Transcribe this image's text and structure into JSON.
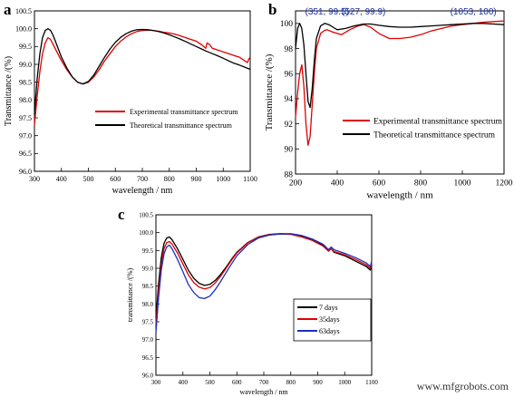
{
  "chart_data": [
    {
      "panel": "a",
      "type": "line",
      "xlabel": "wavelength / nm",
      "ylabel": "Transmittance /(%)",
      "xlim": [
        300,
        1100
      ],
      "ylim": [
        96.0,
        100.5
      ],
      "xticks": [
        "300",
        "400",
        "500",
        "600",
        "700",
        "800",
        "900",
        "1000",
        "1100"
      ],
      "yticks": [
        "96.0",
        "96.5",
        "97.0",
        "97.5",
        "98.0",
        "98.5",
        "99.0",
        "99.5",
        "100.0",
        "100.5"
      ],
      "legend_position": "center-right",
      "series": [
        {
          "name": "Experimental transmittance spectrum",
          "color": "#e00000",
          "x": [
            300,
            310,
            320,
            330,
            340,
            350,
            360,
            370,
            380,
            400,
            420,
            440,
            460,
            480,
            500,
            520,
            540,
            560,
            580,
            600,
            620,
            640,
            660,
            680,
            700,
            720,
            740,
            760,
            780,
            800,
            820,
            840,
            860,
            880,
            900,
            920,
            935,
            940,
            950,
            960,
            980,
            1000,
            1020,
            1040,
            1060,
            1080,
            1090,
            1095,
            1100
          ],
          "y": [
            97.3,
            98.1,
            98.8,
            99.3,
            99.6,
            99.75,
            99.7,
            99.55,
            99.4,
            99.1,
            98.85,
            98.65,
            98.5,
            98.45,
            98.5,
            98.65,
            98.85,
            99.1,
            99.3,
            99.5,
            99.65,
            99.77,
            99.86,
            99.92,
            99.95,
            99.96,
            99.95,
            99.93,
            99.9,
            99.88,
            99.85,
            99.8,
            99.75,
            99.7,
            99.65,
            99.55,
            99.45,
            99.6,
            99.55,
            99.45,
            99.4,
            99.35,
            99.3,
            99.25,
            99.2,
            99.1,
            99.05,
            99.15,
            99.2
          ]
        },
        {
          "name": "Theoretical transmittance spectrum",
          "color": "#000000",
          "x": [
            300,
            310,
            320,
            330,
            340,
            350,
            360,
            370,
            380,
            400,
            420,
            440,
            460,
            480,
            500,
            520,
            540,
            560,
            580,
            600,
            620,
            640,
            660,
            680,
            700,
            720,
            740,
            760,
            780,
            800,
            820,
            840,
            860,
            880,
            900,
            920,
            940,
            960,
            980,
            1000,
            1020,
            1040,
            1060,
            1080,
            1100
          ],
          "y": [
            97.6,
            98.6,
            99.3,
            99.75,
            99.95,
            100.0,
            99.95,
            99.8,
            99.6,
            99.2,
            98.9,
            98.65,
            98.5,
            98.45,
            98.52,
            98.7,
            98.95,
            99.2,
            99.43,
            99.62,
            99.76,
            99.86,
            99.93,
            99.97,
            99.98,
            99.97,
            99.95,
            99.92,
            99.88,
            99.83,
            99.77,
            99.71,
            99.64,
            99.57,
            99.5,
            99.43,
            99.36,
            99.3,
            99.24,
            99.17,
            99.1,
            99.03,
            98.98,
            98.92,
            98.86
          ]
        }
      ]
    },
    {
      "panel": "b",
      "type": "line",
      "xlabel": "wavelength / nm",
      "ylabel": "Transmittance /(%)",
      "xlim": [
        200,
        1200
      ],
      "ylim": [
        88,
        101
      ],
      "xticks": [
        "200",
        "400",
        "600",
        "800",
        "1000",
        "1200"
      ],
      "yticks": [
        "88",
        "90",
        "92",
        "94",
        "96",
        "98",
        "100"
      ],
      "legend_position": "center-right",
      "annotations": [
        {
          "text": "(351, 99.5)",
          "x": 351,
          "y": 100.7
        },
        {
          "text": "(527, 99.9)",
          "x": 527,
          "y": 100.7
        },
        {
          "text": "(1053, 100)",
          "x": 1053,
          "y": 100.7
        }
      ],
      "annotation_color": "#1a2fa8",
      "series": [
        {
          "name": "Experimental transmittance spectrum",
          "color": "#e00000",
          "x": [
            200,
            210,
            220,
            230,
            240,
            250,
            260,
            270,
            280,
            290,
            300,
            320,
            340,
            351,
            380,
            420,
            460,
            500,
            527,
            560,
            600,
            650,
            700,
            750,
            800,
            850,
            900,
            950,
            1000,
            1053,
            1100,
            1150,
            1200
          ],
          "y": [
            92.5,
            94.5,
            96.0,
            96.7,
            95.0,
            92.0,
            90.3,
            91.0,
            93.5,
            96.0,
            98.0,
            99.2,
            99.45,
            99.5,
            99.3,
            99.1,
            99.5,
            99.8,
            99.9,
            99.7,
            99.2,
            98.8,
            98.8,
            98.9,
            99.1,
            99.4,
            99.6,
            99.8,
            99.9,
            100.0,
            100.1,
            100.15,
            100.2
          ]
        },
        {
          "name": "Theoretical transmittance spectrum",
          "color": "#000000",
          "x": [
            200,
            210,
            220,
            230,
            240,
            250,
            260,
            270,
            280,
            290,
            300,
            320,
            340,
            360,
            380,
            400,
            440,
            480,
            527,
            560,
            600,
            650,
            700,
            750,
            800,
            850,
            900,
            950,
            1000,
            1053,
            1100,
            1150,
            1200
          ],
          "y": [
            98.0,
            99.6,
            100.0,
            99.6,
            98.3,
            96.0,
            93.8,
            93.3,
            94.8,
            97.0,
            98.8,
            99.8,
            100.0,
            99.9,
            99.7,
            99.5,
            99.6,
            99.8,
            99.95,
            99.95,
            99.85,
            99.75,
            99.7,
            99.7,
            99.75,
            99.8,
            99.85,
            99.9,
            99.95,
            100.0,
            100.0,
            99.95,
            99.9
          ]
        }
      ]
    },
    {
      "panel": "c",
      "type": "line",
      "xlabel": "wavelength / nm",
      "ylabel": "transmittance /(%)",
      "xlim": [
        300,
        1100
      ],
      "ylim": [
        96.0,
        100.5
      ],
      "xticks": [
        "300",
        "400",
        "500",
        "600",
        "700",
        "800",
        "900",
        "1000",
        "1100"
      ],
      "yticks": [
        "96.0",
        "96.5",
        "97.0",
        "97.5",
        "98.0",
        "98.5",
        "99.0",
        "99.5",
        "100.0",
        "100.5"
      ],
      "legend_position": "center-right",
      "series": [
        {
          "name": "7 days",
          "color": "#000000",
          "x": [
            300,
            310,
            320,
            330,
            340,
            350,
            360,
            380,
            400,
            420,
            440,
            460,
            480,
            500,
            520,
            540,
            560,
            580,
            600,
            640,
            680,
            720,
            760,
            800,
            840,
            880,
            920,
            940,
            950,
            960,
            1000,
            1040,
            1080,
            1095,
            1100
          ],
          "y": [
            97.6,
            98.6,
            99.3,
            99.7,
            99.85,
            99.88,
            99.8,
            99.55,
            99.25,
            98.95,
            98.72,
            98.58,
            98.52,
            98.55,
            98.66,
            98.83,
            99.03,
            99.25,
            99.45,
            99.72,
            99.88,
            99.95,
            99.97,
            99.96,
            99.9,
            99.8,
            99.65,
            99.5,
            99.55,
            99.45,
            99.35,
            99.2,
            99.05,
            98.95,
            99.1
          ]
        },
        {
          "name": "35days",
          "color": "#e00000",
          "x": [
            300,
            310,
            320,
            330,
            340,
            350,
            360,
            380,
            400,
            420,
            440,
            460,
            480,
            500,
            520,
            540,
            560,
            580,
            600,
            640,
            680,
            720,
            760,
            800,
            840,
            880,
            920,
            940,
            950,
            960,
            1000,
            1040,
            1080,
            1095,
            1100
          ],
          "y": [
            97.4,
            98.4,
            99.1,
            99.55,
            99.72,
            99.75,
            99.68,
            99.43,
            99.12,
            98.82,
            98.6,
            98.47,
            98.42,
            98.46,
            98.59,
            98.78,
            99.0,
            99.22,
            99.43,
            99.71,
            99.87,
            99.94,
            99.96,
            99.95,
            99.88,
            99.78,
            99.62,
            99.48,
            99.55,
            99.47,
            99.38,
            99.25,
            99.1,
            99.0,
            99.15
          ]
        },
        {
          "name": "63days",
          "color": "#1a2fbf",
          "x": [
            300,
            310,
            320,
            330,
            340,
            350,
            360,
            380,
            400,
            420,
            440,
            460,
            480,
            500,
            520,
            540,
            560,
            580,
            600,
            640,
            680,
            720,
            760,
            800,
            840,
            880,
            920,
            940,
            950,
            960,
            1000,
            1040,
            1080,
            1095,
            1100
          ],
          "y": [
            97.2,
            98.2,
            98.95,
            99.4,
            99.6,
            99.65,
            99.55,
            99.25,
            98.9,
            98.55,
            98.32,
            98.18,
            98.15,
            98.22,
            98.4,
            98.63,
            98.88,
            99.12,
            99.35,
            99.66,
            99.85,
            99.93,
            99.96,
            99.97,
            99.92,
            99.82,
            99.67,
            99.52,
            99.6,
            99.52,
            99.42,
            99.3,
            99.15,
            99.05,
            99.2
          ]
        }
      ]
    }
  ],
  "panel_letters": {
    "a": "a",
    "b": "b",
    "c": "c"
  },
  "watermark": "www.mfgrobots.com"
}
